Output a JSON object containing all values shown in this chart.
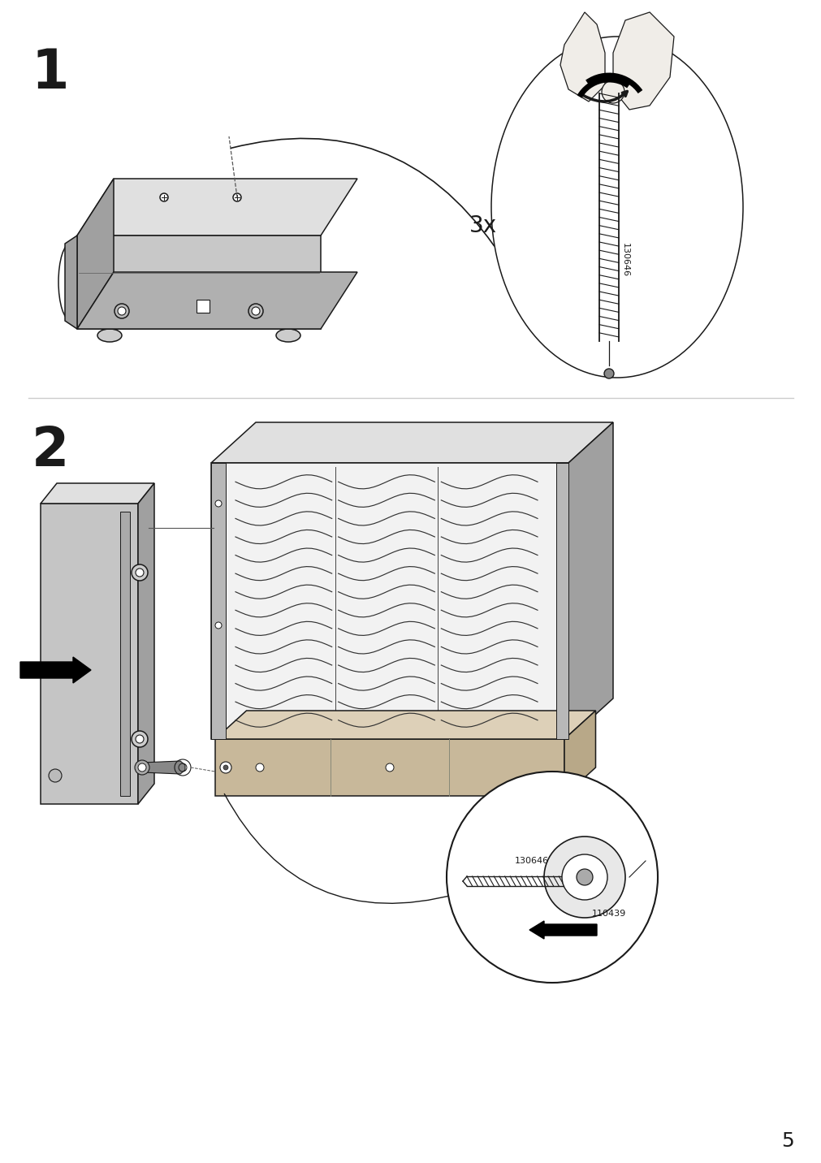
{
  "background_color": "#ffffff",
  "step1_number": "1",
  "step2_number": "2",
  "page_number": "5",
  "label_3x": "3x",
  "part_number_1": "130646",
  "part_number_2": "130646",
  "part_number_3": "110439",
  "line_color": "#1a1a1a",
  "gray_fill": "#c8c8c8",
  "light_gray": "#e0e0e0",
  "dark_gray": "#a0a0a0",
  "wood_color": "#c8b89a"
}
